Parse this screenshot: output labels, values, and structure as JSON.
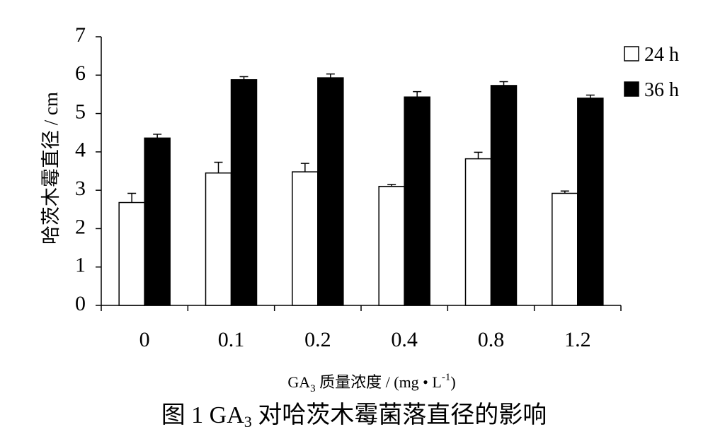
{
  "chart_data": {
    "type": "bar",
    "categories": [
      "0",
      "0.1",
      "0.2",
      "0.4",
      "0.8",
      "1.2"
    ],
    "series": [
      {
        "name": "24 h",
        "values": [
          2.68,
          3.45,
          3.48,
          3.1,
          3.82,
          2.92
        ],
        "errors": [
          0.24,
          0.28,
          0.22,
          0.05,
          0.17,
          0.06
        ],
        "color": "#ffffff"
      },
      {
        "name": "36 h",
        "values": [
          4.36,
          5.88,
          5.93,
          5.43,
          5.73,
          5.4
        ],
        "errors": [
          0.1,
          0.08,
          0.1,
          0.14,
          0.1,
          0.08
        ],
        "color": "#000000"
      }
    ],
    "ylim": [
      0,
      7
    ],
    "yticks": [
      "0",
      "1",
      "2",
      "3",
      "4",
      "5",
      "6",
      "7"
    ],
    "ylabel": "哈茨木霉直径 / cm",
    "xlabel": {
      "prefix": "GA",
      "sub": "3",
      "mid": " 质量浓度 / (mg • L",
      "sup": "-1",
      "suffix": ")"
    },
    "legend_position": "top-right",
    "grid": false
  },
  "caption": {
    "prefix": "图 1  GA",
    "sub": "3",
    "suffix": " 对哈茨木霉菌落直径的影响"
  }
}
